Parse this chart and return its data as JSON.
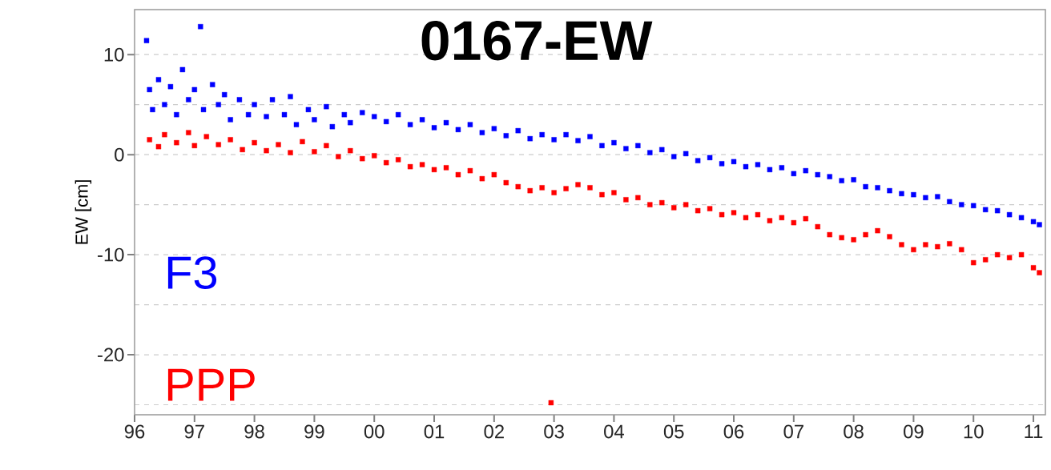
{
  "chart_data": {
    "type": "scatter",
    "title": "0167-EW",
    "ylabel": "EW [cm]",
    "marker": "square",
    "grid": "y",
    "xlim": [
      1996,
      2011.2
    ],
    "ylim": [
      -26,
      14.5
    ],
    "xticks": [
      {
        "value": 1996,
        "label": "96"
      },
      {
        "value": 1997,
        "label": "97"
      },
      {
        "value": 1998,
        "label": "98"
      },
      {
        "value": 1999,
        "label": "99"
      },
      {
        "value": 2000,
        "label": "00"
      },
      {
        "value": 2001,
        "label": "01"
      },
      {
        "value": 2002,
        "label": "02"
      },
      {
        "value": 2003,
        "label": "03"
      },
      {
        "value": 2004,
        "label": "04"
      },
      {
        "value": 2005,
        "label": "05"
      },
      {
        "value": 2006,
        "label": "06"
      },
      {
        "value": 2007,
        "label": "07"
      },
      {
        "value": 2008,
        "label": "08"
      },
      {
        "value": 2009,
        "label": "09"
      },
      {
        "value": 2010,
        "label": "10"
      },
      {
        "value": 2011,
        "label": "11"
      }
    ],
    "yticks": [
      {
        "value": -25,
        "label": null
      },
      -20,
      {
        "value": -15,
        "label": null
      },
      -10,
      {
        "value": -5,
        "label": null
      },
      0,
      {
        "value": 5,
        "label": null
      },
      10
    ],
    "series": [
      {
        "name": "F3",
        "color": "#0000ff",
        "x": [
          1996.2,
          1996.25,
          1996.3,
          1996.4,
          1996.5,
          1996.6,
          1996.7,
          1996.8,
          1996.9,
          1997.0,
          1997.1,
          1997.15,
          1997.3,
          1997.4,
          1997.5,
          1997.6,
          1997.75,
          1997.9,
          1998.0,
          1998.2,
          1998.3,
          1998.5,
          1998.6,
          1998.7,
          1998.9,
          1999.0,
          1999.2,
          1999.3,
          1999.5,
          1999.6,
          1999.8,
          2000.0,
          2000.2,
          2000.4,
          2000.6,
          2000.8,
          2001.0,
          2001.2,
          2001.4,
          2001.6,
          2001.8,
          2002.0,
          2002.2,
          2002.4,
          2002.6,
          2002.8,
          2003.0,
          2003.2,
          2003.4,
          2003.6,
          2003.8,
          2004.0,
          2004.2,
          2004.4,
          2004.6,
          2004.8,
          2005.0,
          2005.2,
          2005.4,
          2005.6,
          2005.8,
          2006.0,
          2006.2,
          2006.4,
          2006.6,
          2006.8,
          2007.0,
          2007.2,
          2007.4,
          2007.6,
          2007.8,
          2008.0,
          2008.2,
          2008.4,
          2008.6,
          2008.8,
          2009.0,
          2009.2,
          2009.4,
          2009.6,
          2009.8,
          2010.0,
          2010.2,
          2010.4,
          2010.6,
          2010.8,
          2011.0,
          2011.1
        ],
        "values": [
          11.4,
          6.5,
          4.5,
          7.5,
          5.0,
          6.8,
          4.0,
          8.5,
          5.5,
          6.5,
          12.8,
          4.5,
          7.0,
          5.0,
          6.0,
          3.5,
          5.5,
          4.0,
          5.0,
          3.8,
          5.5,
          4.0,
          5.8,
          3.0,
          4.5,
          3.5,
          4.8,
          2.8,
          4.0,
          3.2,
          4.2,
          3.8,
          3.3,
          4.0,
          3.0,
          3.5,
          2.7,
          3.2,
          2.5,
          3.0,
          2.2,
          2.6,
          1.9,
          2.4,
          1.6,
          2.0,
          1.5,
          2.0,
          1.4,
          1.8,
          0.9,
          1.2,
          0.6,
          0.9,
          0.2,
          0.5,
          -0.2,
          0.1,
          -0.6,
          -0.3,
          -0.9,
          -0.7,
          -1.2,
          -1.0,
          -1.5,
          -1.3,
          -1.9,
          -1.6,
          -2.0,
          -2.2,
          -2.6,
          -2.5,
          -3.2,
          -3.3,
          -3.6,
          -3.9,
          -4.0,
          -4.3,
          -4.2,
          -4.7,
          -5.0,
          -5.1,
          -5.5,
          -5.6,
          -6.0,
          -6.3,
          -6.7,
          -7.0
        ]
      },
      {
        "name": "PPP",
        "color": "#ff0000",
        "x": [
          1996.25,
          1996.4,
          1996.5,
          1996.7,
          1996.9,
          1997.0,
          1997.2,
          1997.4,
          1997.6,
          1997.8,
          1998.0,
          1998.2,
          1998.4,
          1998.6,
          1998.8,
          1999.0,
          1999.2,
          1999.4,
          1999.6,
          1999.8,
          2000.0,
          2000.2,
          2000.4,
          2000.6,
          2000.8,
          2001.0,
          2001.2,
          2001.4,
          2001.6,
          2001.8,
          2002.0,
          2002.2,
          2002.4,
          2002.6,
          2002.8,
          2002.95,
          2003.0,
          2003.2,
          2003.4,
          2003.6,
          2003.8,
          2004.0,
          2004.2,
          2004.4,
          2004.6,
          2004.8,
          2005.0,
          2005.2,
          2005.4,
          2005.6,
          2005.8,
          2006.0,
          2006.2,
          2006.4,
          2006.6,
          2006.8,
          2007.0,
          2007.2,
          2007.4,
          2007.6,
          2007.8,
          2008.0,
          2008.2,
          2008.4,
          2008.6,
          2008.8,
          2009.0,
          2009.2,
          2009.4,
          2009.6,
          2009.8,
          2010.0,
          2010.2,
          2010.4,
          2010.6,
          2010.8,
          2011.0,
          2011.1
        ],
        "values": [
          1.5,
          0.8,
          2.0,
          1.2,
          2.2,
          0.9,
          1.8,
          1.0,
          1.5,
          0.5,
          1.2,
          0.4,
          1.0,
          0.2,
          1.3,
          0.3,
          0.9,
          -0.2,
          0.4,
          -0.4,
          -0.1,
          -0.8,
          -0.5,
          -1.2,
          -1.0,
          -1.5,
          -1.3,
          -2.0,
          -1.6,
          -2.4,
          -2.0,
          -2.8,
          -3.2,
          -3.6,
          -3.3,
          -24.8,
          -3.8,
          -3.4,
          -3.0,
          -3.3,
          -4.0,
          -3.8,
          -4.5,
          -4.3,
          -5.0,
          -4.8,
          -5.3,
          -5.0,
          -5.6,
          -5.4,
          -6.0,
          -5.8,
          -6.3,
          -6.0,
          -6.6,
          -6.3,
          -6.8,
          -6.4,
          -7.2,
          -8.0,
          -8.3,
          -8.5,
          -8.0,
          -7.6,
          -8.2,
          -9.0,
          -9.5,
          -9.0,
          -9.2,
          -8.9,
          -9.5,
          -10.8,
          -10.5,
          -10.0,
          -10.3,
          -10.0,
          -11.3,
          -11.8
        ]
      }
    ]
  }
}
